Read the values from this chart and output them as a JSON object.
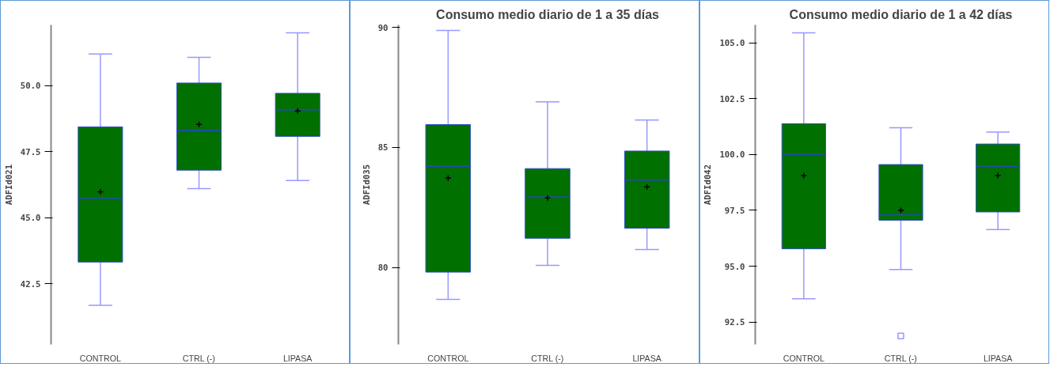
{
  "chart_data": [
    {
      "type": "box",
      "ylabel": "ADFId021",
      "categories": [
        "CONTROL",
        "CTRL (-)",
        "LIPASA"
      ],
      "ylim": [
        40.2,
        52.3
      ],
      "yticks": [
        {
          "value": 42.5,
          "label": "42.5"
        },
        {
          "value": 45,
          "label": "45.0"
        },
        {
          "value": 47.5,
          "label": "47.5"
        },
        {
          "value": 50,
          "label": "50.0"
        }
      ],
      "series": [
        {
          "color": "#007000",
          "boxes": [
            {
              "low": 41.68,
              "q1": 43.32,
              "median": 45.74,
              "q3": 48.44,
              "high": 51.2,
              "mean": 45.98
            },
            {
              "low": 46.1,
              "q1": 46.8,
              "median": 48.3,
              "q3": 50.1,
              "high": 51.07,
              "mean": 48.53
            },
            {
              "low": 46.41,
              "q1": 48.08,
              "median": 49.09,
              "q3": 49.71,
              "high": 52.0,
              "mean": 49.04
            }
          ]
        }
      ]
    },
    {
      "type": "box",
      "title": "Consumo medio diario de 1 a 35 días",
      "ylabel": "ADFId035",
      "categories": [
        "CONTROL",
        "CTRL (-)",
        "LIPASA"
      ],
      "ylim": [
        76.8,
        90.1
      ],
      "yticks": [
        80,
        85,
        90
      ],
      "series": [
        {
          "color": "#007000",
          "boxes": [
            {
              "low": 78.68,
              "q1": 79.81,
              "median": 84.22,
              "q3": 85.95,
              "high": 89.87,
              "mean": 83.72
            },
            {
              "low": 80.09,
              "q1": 81.22,
              "median": 82.93,
              "q3": 84.12,
              "high": 86.9,
              "mean": 82.9
            },
            {
              "low": 80.75,
              "q1": 81.64,
              "median": 83.65,
              "q3": 84.85,
              "high": 86.14,
              "mean": 83.36
            }
          ]
        }
      ]
    },
    {
      "type": "box",
      "title": "Consumo medio diario de 1 a 42 días",
      "ylabel": "ADFId042",
      "categories": [
        "CONTROL",
        "CTRL (-)",
        "LIPASA"
      ],
      "ylim": [
        91.5,
        105.8
      ],
      "yticks": [
        {
          "value": 92.5,
          "label": "92.5"
        },
        {
          "value": 95,
          "label": "95.0"
        },
        {
          "value": 97.5,
          "label": "97.5"
        },
        {
          "value": 100,
          "label": "100.0"
        },
        {
          "value": 102.5,
          "label": "102.5"
        },
        {
          "value": 105,
          "label": "105.0"
        }
      ],
      "series": [
        {
          "color": "#007000",
          "boxes": [
            {
              "low": 93.54,
              "q1": 95.78,
              "median": 100.0,
              "q3": 101.38,
              "high": 105.45,
              "mean": 99.06
            },
            {
              "low": 94.85,
              "q1": 97.06,
              "median": 97.3,
              "q3": 99.55,
              "high": 101.2,
              "mean": 97.5,
              "outliers": [
                91.88
              ]
            },
            {
              "low": 96.64,
              "q1": 97.43,
              "median": 99.47,
              "q3": 100.47,
              "high": 101.0,
              "mean": 99.06
            }
          ]
        }
      ]
    }
  ]
}
